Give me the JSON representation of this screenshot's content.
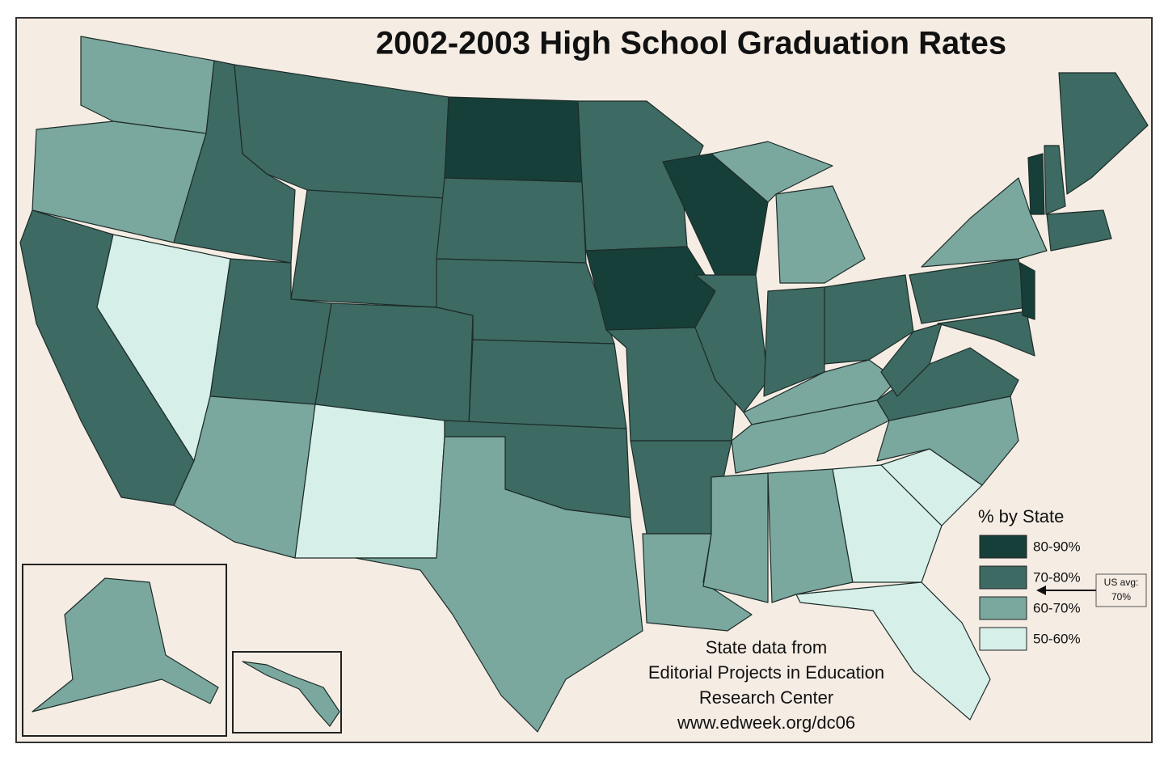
{
  "title": "2002-2003 High School Graduation Rates",
  "legend": {
    "title": "% by State",
    "items": [
      {
        "label": "80-90%",
        "color": "#173f3a"
      },
      {
        "label": "70-80%",
        "color": "#3d6a63"
      },
      {
        "label": "60-70%",
        "color": "#7aa79e"
      },
      {
        "label": "50-60%",
        "color": "#d6efe9"
      }
    ]
  },
  "note": {
    "lines": [
      "US avg:",
      "70%"
    ]
  },
  "source": {
    "lines": [
      "State data from",
      "Editorial Projects in Education",
      "Research Center",
      "www.edweek.org/dc06"
    ]
  }
}
